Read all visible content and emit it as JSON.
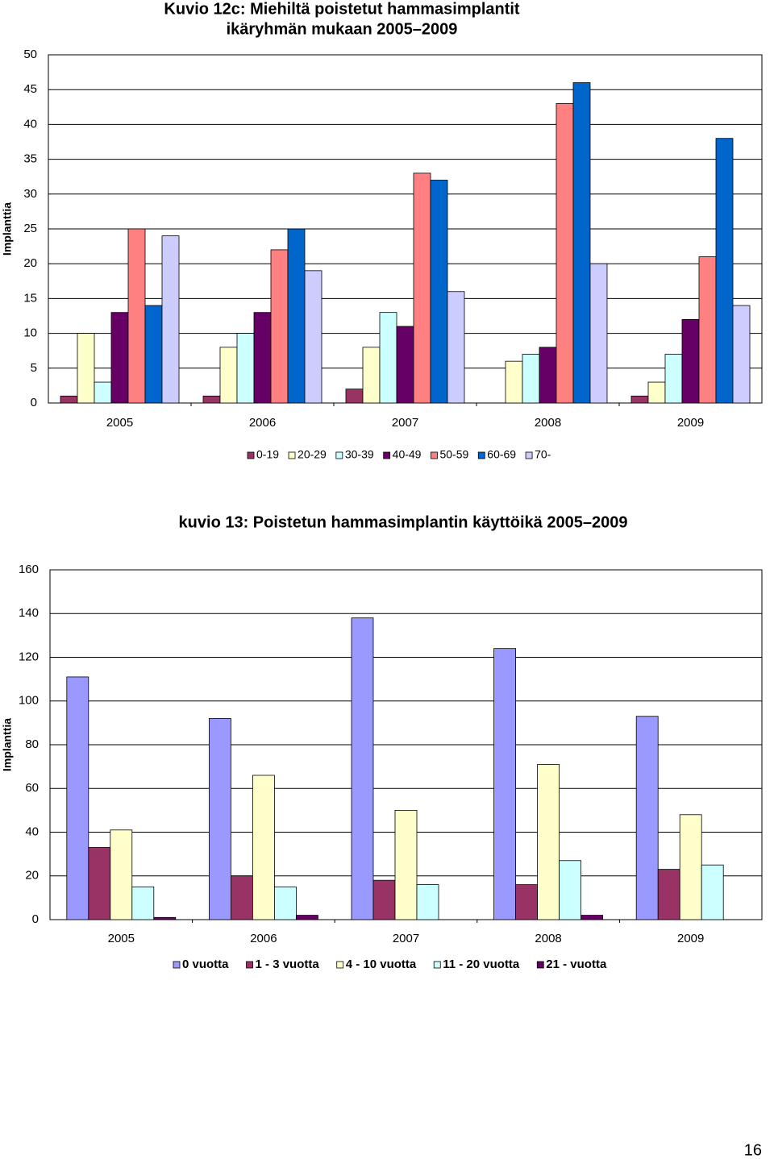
{
  "chart_data": [
    {
      "type": "bar",
      "title": [
        "Kuvio 12c: Miehiltä poistetut hammasimplantit",
        "ikäryhmän mukaan 2005–2009"
      ],
      "y_label": "Implanttia",
      "categories": [
        "2005",
        "2006",
        "2007",
        "2008",
        "2009"
      ],
      "series": [
        {
          "name": "0-19",
          "color": "#993366",
          "values": [
            1,
            1,
            2,
            0,
            1
          ]
        },
        {
          "name": "20-29",
          "color": "#ffffcc",
          "values": [
            10,
            8,
            8,
            6,
            3
          ]
        },
        {
          "name": "30-39",
          "color": "#ccffff",
          "values": [
            3,
            10,
            13,
            7,
            7
          ]
        },
        {
          "name": "40-49",
          "color": "#660066",
          "values": [
            13,
            13,
            11,
            8,
            12
          ]
        },
        {
          "name": "50-59",
          "color": "#ff8080",
          "values": [
            25,
            22,
            33,
            43,
            21
          ]
        },
        {
          "name": "60-69",
          "color": "#0066cc",
          "values": [
            14,
            25,
            32,
            46,
            38
          ]
        },
        {
          "name": "70-",
          "color": "#ccccff",
          "values": [
            24,
            19,
            16,
            20,
            14
          ]
        }
      ],
      "ylim": [
        0,
        50
      ],
      "yticks": [
        0,
        5,
        10,
        15,
        20,
        25,
        30,
        35,
        40,
        45,
        50
      ],
      "grid": true,
      "legend": "bottom"
    },
    {
      "type": "bar",
      "title": [
        "kuvio 13: Poistetun hammasimplantin käyttöikä 2005–2009"
      ],
      "y_label": "Implanttia",
      "categories": [
        "2005",
        "2006",
        "2007",
        "2008",
        "2009"
      ],
      "series": [
        {
          "name": "0 vuotta",
          "color": "#9999ff",
          "values": [
            111,
            92,
            138,
            124,
            93
          ]
        },
        {
          "name": "1 - 3 vuotta",
          "color": "#993366",
          "values": [
            33,
            20,
            18,
            16,
            23
          ]
        },
        {
          "name": "4 - 10 vuotta",
          "color": "#ffffcc",
          "values": [
            41,
            66,
            50,
            71,
            48
          ]
        },
        {
          "name": "11 - 20 vuotta",
          "color": "#ccffff",
          "values": [
            15,
            15,
            16,
            27,
            25
          ]
        },
        {
          "name": "21 - vuotta",
          "color": "#660066",
          "values": [
            1,
            2,
            0,
            2,
            0
          ]
        }
      ],
      "ylim": [
        0,
        160
      ],
      "yticks": [
        0,
        20,
        40,
        60,
        80,
        100,
        120,
        140,
        160
      ],
      "grid": true,
      "legend": "bottom"
    }
  ],
  "page_number": "16"
}
